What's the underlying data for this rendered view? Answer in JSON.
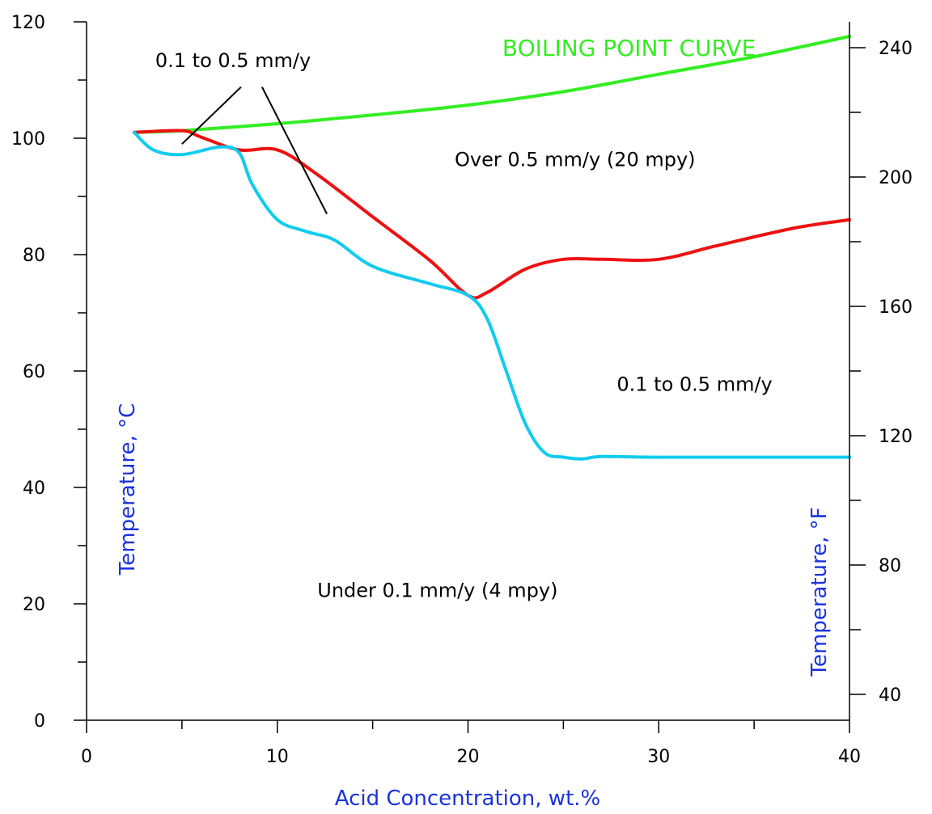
{
  "colors": {
    "boiling_point": "#33ee22",
    "iso_0_5": "#ee1111",
    "iso_0_1": "#11ccee",
    "axis_title": "#1a33dd",
    "axis": "#000000"
  },
  "chart_data": {
    "type": "line",
    "title": "",
    "xlabel": "Acid Concentration, wt.%",
    "ylabel": "Temperature, °C",
    "ylabel_right": "Temperature, °F",
    "xlim": [
      0,
      40
    ],
    "ylim": [
      0,
      120
    ],
    "xticks": [
      "0",
      "10",
      "20",
      "30",
      "40"
    ],
    "yticks": [
      "0",
      "20",
      "40",
      "60",
      "80",
      "100",
      "120"
    ],
    "yticks_right": [
      "40",
      "80",
      "120",
      "160",
      "200",
      "240"
    ],
    "grid": false,
    "series": [
      {
        "name": "BOILING POINT CURVE",
        "color": "#33ee22",
        "x": [
          2.5,
          5,
          10,
          15,
          20,
          25,
          30,
          35,
          40
        ],
        "y": [
          101,
          101.3,
          102.5,
          104,
          105.7,
          108,
          111,
          114,
          117.5
        ]
      },
      {
        "name": "",
        "color": "#ee1111",
        "x": [
          2.5,
          5,
          6,
          8,
          10,
          12,
          15,
          18,
          20,
          21,
          23,
          25,
          27,
          30,
          33,
          37,
          40
        ],
        "y": [
          101,
          101.3,
          100.2,
          98,
          98,
          94,
          86.5,
          79,
          73,
          73.5,
          77.5,
          79.2,
          79.2,
          79.2,
          81.5,
          84.5,
          86
        ]
      },
      {
        "name": "",
        "color": "#11ccee",
        "x": [
          2.5,
          3.5,
          5,
          7,
          8,
          8.7,
          10,
          11.5,
          13,
          15,
          18,
          20,
          21,
          22,
          23,
          24,
          25,
          26,
          27,
          30,
          35,
          40
        ],
        "y": [
          101,
          98,
          97.2,
          98.5,
          97.5,
          92,
          86,
          84,
          82.5,
          78,
          75,
          73,
          69,
          60,
          51,
          46,
          45.2,
          44.9,
          45.3,
          45.2,
          45.2,
          45.2
        ]
      }
    ],
    "annotations": [
      {
        "text": "BOILING POINT CURVE",
        "x": 21.8,
        "y": 114.2,
        "color": "#33ee22"
      },
      {
        "text": "0.1 to 0.5 mm/y",
        "x": 3.6,
        "y": 112.2,
        "color": "#000000"
      },
      {
        "text": "Over 0.5 mm/y (20 mpy)",
        "x": 19.3,
        "y": 95.2,
        "color": "#000000"
      },
      {
        "text": "0.1 to 0.5 mm/y",
        "x": 27.8,
        "y": 56.6,
        "color": "#000000"
      },
      {
        "text": "Under 0.1 mm/y (4 mpy)",
        "x": 12.1,
        "y": 21.2,
        "color": "#000000"
      }
    ],
    "leader_lines": [
      {
        "x1": 8.1,
        "y1": 108.8,
        "x2": 5.0,
        "y2": 99.0
      },
      {
        "x1": 9.2,
        "y1": 108.8,
        "x2": 12.6,
        "y2": 87.0
      }
    ]
  }
}
